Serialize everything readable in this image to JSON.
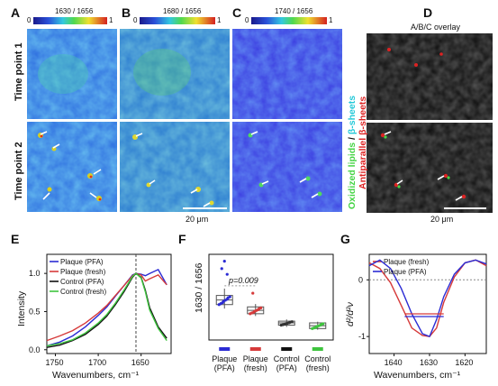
{
  "panels": {
    "A": {
      "label": "A",
      "ratio": "1630 / 1656",
      "cmin": "0",
      "cmax": "1"
    },
    "B": {
      "label": "B",
      "ratio": "1680 / 1656",
      "cmin": "0",
      "cmax": "1"
    },
    "C": {
      "label": "C",
      "ratio": "1740 / 1656",
      "cmin": "0",
      "cmax": "1"
    },
    "D": {
      "label": "D",
      "title": "A/B/C overlay"
    },
    "E": {
      "label": "E"
    },
    "F": {
      "label": "F"
    },
    "G": {
      "label": "G"
    }
  },
  "row_labels": [
    "Time point 1",
    "Time point 2"
  ],
  "scalebar": {
    "first": "20  μm",
    "second": "20  μm"
  },
  "overlay_legend": {
    "part1": "Oxidized lipids",
    "sep": " / ",
    "part2": "β-sheets",
    "part3": "Antiparallel β-sheets"
  },
  "colors": {
    "plaque_pfa": "#2b2bd4",
    "plaque_fresh": "#d63a3a",
    "control_pfa": "#111111",
    "control_fresh": "#3ec43e",
    "oxidized": "#44d444",
    "beta": "#22c8d8",
    "antiparallel": "#dd2222"
  },
  "chart_data": [
    {
      "type": "line",
      "panel": "E",
      "xlabel": "Wavenumbers, cm⁻¹",
      "ylabel": "Intensity",
      "x_ticks": [
        "1750",
        "1700",
        "1650"
      ],
      "y_ticks": [
        "0.0",
        "0.5",
        "1.0"
      ],
      "xlim": [
        1760,
        1615
      ],
      "ylim": [
        -0.05,
        1.25
      ],
      "x": [
        1760,
        1745,
        1730,
        1715,
        1700,
        1690,
        1680,
        1670,
        1660,
        1656,
        1650,
        1645,
        1640,
        1630,
        1620
      ],
      "series": [
        {
          "name": "Plaque (PFA)",
          "values": [
            0.05,
            0.1,
            0.18,
            0.3,
            0.45,
            0.56,
            0.7,
            0.84,
            0.98,
            1.0,
            0.99,
            0.97,
            1.0,
            1.05,
            0.85
          ]
        },
        {
          "name": "Plaque (fresh)",
          "values": [
            0.12,
            0.18,
            0.25,
            0.35,
            0.48,
            0.58,
            0.71,
            0.84,
            0.97,
            1.0,
            0.98,
            0.9,
            0.93,
            0.98,
            0.85
          ]
        },
        {
          "name": "Control (PFA)",
          "values": [
            0.03,
            0.06,
            0.12,
            0.2,
            0.33,
            0.44,
            0.59,
            0.76,
            0.95,
            1.0,
            0.95,
            0.78,
            0.55,
            0.3,
            0.15
          ]
        },
        {
          "name": "Control (fresh)",
          "values": [
            0.05,
            0.08,
            0.13,
            0.22,
            0.35,
            0.46,
            0.61,
            0.78,
            0.96,
            1.0,
            0.94,
            0.76,
            0.52,
            0.28,
            0.12
          ]
        }
      ],
      "annotation": "1656 dashed line"
    },
    {
      "type": "box",
      "panel": "F",
      "ylabel": "1630 / 1656",
      "categories": [
        "Plaque\n(PFA)",
        "Plaque\n(fresh)",
        "Control\n(PFA)",
        "Control\n(fresh)"
      ],
      "category_lines": [
        [
          "Plaque",
          "(PFA)"
        ],
        [
          "Plaque",
          "(fresh)"
        ],
        [
          "Control",
          "(PFA)"
        ],
        [
          "Control",
          "(fresh)"
        ]
      ],
      "ylim": [
        0.3,
        1.8
      ],
      "boxes": [
        {
          "q1": 0.92,
          "median": 1.0,
          "q3": 1.08,
          "min": 0.85,
          "max": 1.2,
          "outliers": [
            1.55,
            1.68,
            1.45
          ]
        },
        {
          "q1": 0.76,
          "median": 0.82,
          "q3": 0.88,
          "min": 0.72,
          "max": 0.93,
          "outliers": [
            1.12
          ]
        },
        {
          "q1": 0.56,
          "median": 0.6,
          "q3": 0.63,
          "min": 0.53,
          "max": 0.66,
          "outliers": []
        },
        {
          "q1": 0.5,
          "median": 0.55,
          "q3": 0.6,
          "min": 0.48,
          "max": 0.62,
          "outliers": []
        }
      ],
      "annotation": "p=0.009"
    },
    {
      "type": "line",
      "panel": "G",
      "xlabel": "Wavenumbers, cm⁻¹",
      "ylabel": "d²/d²ν",
      "x_ticks": [
        "1640",
        "1630",
        "1620"
      ],
      "y_ticks": [
        "0",
        "-1"
      ],
      "xlim": [
        1647,
        1614
      ],
      "ylim": [
        -1.3,
        0.45
      ],
      "x": [
        1647,
        1644,
        1641,
        1638,
        1635,
        1632,
        1630,
        1628,
        1626,
        1623,
        1620,
        1617,
        1614
      ],
      "series": [
        {
          "name": "Plaque (fresh)",
          "values": [
            0.3,
            0.2,
            -0.05,
            -0.45,
            -0.85,
            -0.98,
            -1.0,
            -0.85,
            -0.4,
            0.05,
            0.3,
            0.35,
            0.25
          ]
        },
        {
          "name": "Plaque (PFA)",
          "values": [
            0.25,
            0.35,
            0.2,
            -0.15,
            -0.6,
            -0.95,
            -1.0,
            -0.7,
            -0.3,
            0.1,
            0.3,
            0.35,
            0.28
          ]
        }
      ]
    }
  ]
}
